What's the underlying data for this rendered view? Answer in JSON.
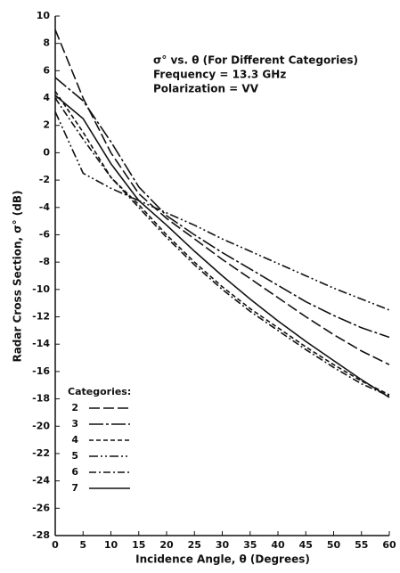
{
  "chart_data": {
    "type": "line",
    "annotation": [
      "σ° vs. θ (For Different Categories)",
      "Frequency = 13.3 GHz",
      "Polarization = VV"
    ],
    "xlabel": "Incidence Angle, θ (Degrees)",
    "ylabel": "Radar Cross Section, σ° (dB)",
    "legend_title": "Categories:",
    "x": [
      0,
      5,
      10,
      15,
      20,
      25,
      30,
      35,
      40,
      45,
      50,
      55,
      60
    ],
    "series": [
      {
        "name": "2",
        "color": "#111111",
        "values": [
          9,
          4,
          0,
          -3,
          -4.8,
          -6.3,
          -7.8,
          -9.2,
          -10.6,
          -12,
          -13.3,
          -14.5,
          -15.5
        ]
      },
      {
        "name": "3",
        "color": "#111111",
        "values": [
          5.5,
          3.8,
          0.8,
          -2.5,
          -4.6,
          -6,
          -7.3,
          -8.5,
          -9.7,
          -10.9,
          -11.9,
          -12.8,
          -13.5
        ]
      },
      {
        "name": "4",
        "color": "#111111",
        "values": [
          4.5,
          1.5,
          -1.8,
          -3.8,
          -6,
          -8,
          -9.8,
          -11.4,
          -12.8,
          -14.2,
          -15.5,
          -16.7,
          -17.7
        ]
      },
      {
        "name": "5",
        "color": "#111111",
        "values": [
          3,
          -1.5,
          -2.6,
          -3.5,
          -4.4,
          -5.3,
          -6.3,
          -7.2,
          -8.1,
          -9,
          -9.9,
          -10.7,
          -11.5
        ]
      },
      {
        "name": "6",
        "color": "#111111",
        "values": [
          4,
          1,
          -1.8,
          -4,
          -6.2,
          -8.2,
          -10,
          -11.6,
          -13,
          -14.4,
          -15.7,
          -16.9,
          -17.8
        ]
      },
      {
        "name": "7",
        "color": "#111111",
        "values": [
          4.2,
          2.5,
          -0.8,
          -3.5,
          -5.3,
          -7.2,
          -9,
          -10.7,
          -12.3,
          -13.8,
          -15.2,
          -16.6,
          -17.9
        ]
      }
    ],
    "xlim": [
      0,
      60
    ],
    "xticks": [
      0,
      5,
      10,
      15,
      20,
      25,
      30,
      35,
      40,
      45,
      50,
      55,
      60
    ],
    "ylim": [
      -28,
      10
    ],
    "yticks": [
      -28,
      -26,
      -24,
      -22,
      -20,
      -18,
      -16,
      -14,
      -12,
      -10,
      -8,
      -6,
      -4,
      -2,
      0,
      2,
      4,
      6,
      8,
      10
    ],
    "grid": false
  }
}
